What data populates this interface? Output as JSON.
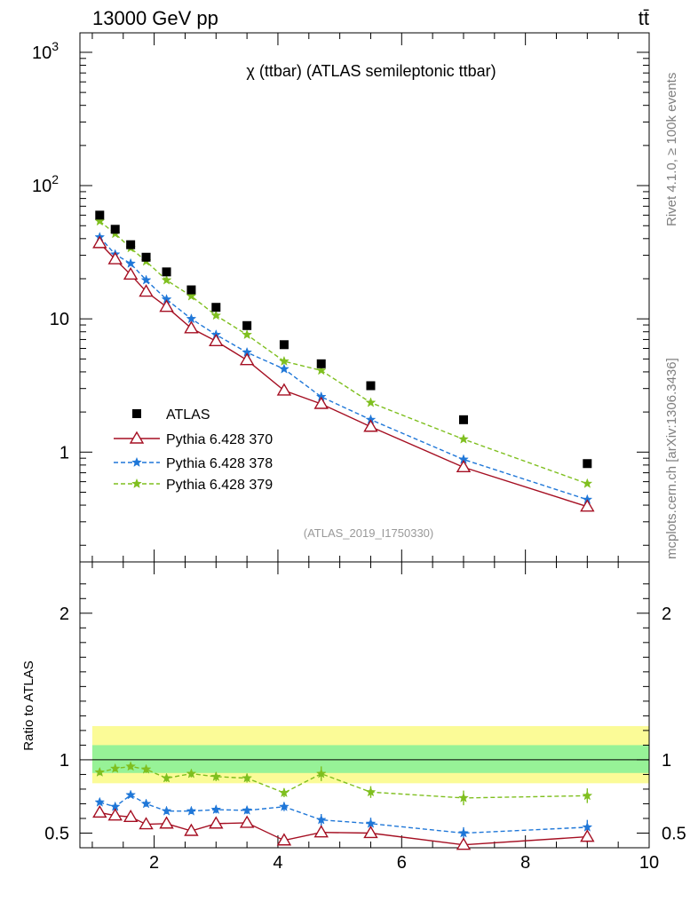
{
  "header": {
    "energy_label": "13000 GeV pp",
    "process_label": "tt̄"
  },
  "side_labels": {
    "rivet": "Rivet 4.1.0, ≥ 100k events",
    "mcplots": "mcplots.cern.ch [arXiv:1306.3436]"
  },
  "colors": {
    "atlas": "#000000",
    "p370": "#a50f22",
    "p378": "#1f77d8",
    "p379": "#7fbf1f",
    "band_inner": "#97f297",
    "band_outer": "#fbfb97"
  },
  "chart_data": [
    {
      "type": "line",
      "panel": "main",
      "title": "χ (ttbar) (ATLAS semileptonic ttbar)",
      "analysis_id": "(ATLAS_2019_I1750330)",
      "xlabel": "",
      "ylabel": "",
      "xlim": [
        0.8,
        10
      ],
      "ylim": [
        0.15,
        1400
      ],
      "yscale": "log",
      "y_ticks": [
        "1",
        "10",
        "10^2",
        "10^3"
      ],
      "x": [
        1.12,
        1.37,
        1.62,
        1.87,
        2.2,
        2.6,
        3.0,
        3.5,
        4.1,
        4.7,
        5.5,
        7.0,
        9.0
      ],
      "series": [
        {
          "name": "ATLAS",
          "marker": "square",
          "values": [
            60,
            47,
            36,
            29,
            22.5,
            16.5,
            12.2,
            8.9,
            6.4,
            4.6,
            3.15,
            1.75,
            0.82
          ]
        },
        {
          "name": "Pythia 6.428 370",
          "marker": "triangle",
          "line": "solid",
          "values": [
            37,
            28,
            21.5,
            16,
            12.3,
            8.5,
            6.8,
            4.9,
            2.9,
            2.3,
            1.55,
            0.77,
            0.39
          ]
        },
        {
          "name": "Pythia 6.428 378",
          "marker": "star",
          "line": "dashed",
          "values": [
            41,
            30.5,
            26,
            19.5,
            14,
            10,
            7.6,
            5.6,
            4.2,
            2.6,
            1.75,
            0.88,
            0.44
          ]
        },
        {
          "name": "Pythia 6.428 379",
          "marker": "star",
          "line": "dashed",
          "values": [
            54,
            43.5,
            34,
            27,
            19.5,
            14.8,
            10.6,
            7.6,
            4.8,
            4.1,
            2.35,
            1.25,
            0.58
          ]
        }
      ]
    },
    {
      "type": "line",
      "panel": "ratio",
      "ylabel": "Ratio to ATLAS",
      "xlim": [
        0.8,
        10
      ],
      "ylim": [
        0.4,
        2.35
      ],
      "y_ticks": [
        "0.5",
        "1",
        "2"
      ],
      "x_ticks": [
        "2",
        "4",
        "6",
        "8",
        "10"
      ],
      "x": [
        1.12,
        1.37,
        1.62,
        1.87,
        2.2,
        2.6,
        3.0,
        3.5,
        4.1,
        4.7,
        5.5,
        7.0,
        9.0
      ],
      "band": {
        "inner_low": 0.91,
        "inner_high": 1.1,
        "outer_low": 0.84,
        "outer_high": 1.23
      },
      "series": [
        {
          "name": "Pythia 6.428 370",
          "values": [
            0.64,
            0.62,
            0.61,
            0.56,
            0.565,
            0.515,
            0.565,
            0.57,
            0.45,
            0.505,
            0.5,
            0.42,
            0.475
          ],
          "errors": [
            0.02,
            0.02,
            0.02,
            0.02,
            0.02,
            0.02,
            0.02,
            0.02,
            0.03,
            0.03,
            0.03,
            0.03,
            0.04
          ]
        },
        {
          "name": "Pythia 6.428 378",
          "values": [
            0.71,
            0.68,
            0.76,
            0.7,
            0.65,
            0.65,
            0.66,
            0.655,
            0.68,
            0.59,
            0.565,
            0.5,
            0.54
          ],
          "errors": [
            0.015,
            0.015,
            0.015,
            0.02,
            0.02,
            0.02,
            0.025,
            0.025,
            0.03,
            0.04,
            0.04,
            0.04,
            0.05
          ]
        },
        {
          "name": "Pythia 6.428 379",
          "values": [
            0.915,
            0.94,
            0.955,
            0.935,
            0.875,
            0.905,
            0.885,
            0.875,
            0.775,
            0.905,
            0.78,
            0.74,
            0.755
          ],
          "errors": [
            0.02,
            0.02,
            0.02,
            0.025,
            0.025,
            0.025,
            0.03,
            0.03,
            0.03,
            0.05,
            0.04,
            0.05,
            0.05
          ]
        }
      ]
    }
  ]
}
